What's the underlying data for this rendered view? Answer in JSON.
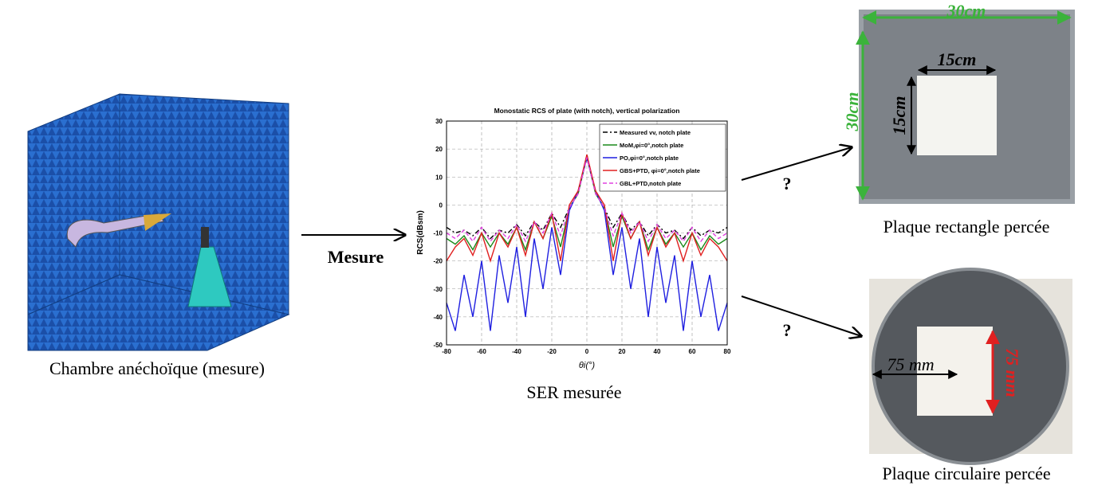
{
  "chamber": {
    "caption": "Chambre anéchoïque (mesure)"
  },
  "arrow_labels": [
    "Mesure",
    "?",
    "?"
  ],
  "chart": {
    "type": "line",
    "title": "Monostatic RCS of plate (with notch), vertical polarization",
    "xlabel": "θi(°)",
    "ylabel": "RCS(dBsm)",
    "xlim": [
      -80,
      80
    ],
    "ylim": [
      -50,
      30
    ],
    "xticks": [
      -80,
      -60,
      -40,
      -20,
      0,
      20,
      40,
      60,
      80
    ],
    "yticks": [
      -50,
      -40,
      -30,
      -20,
      -10,
      0,
      10,
      20,
      30
    ],
    "grid": true,
    "x": [
      -80,
      -75,
      -70,
      -65,
      -60,
      -55,
      -50,
      -45,
      -40,
      -35,
      -30,
      -25,
      -20,
      -15,
      -10,
      -5,
      0,
      5,
      10,
      15,
      20,
      25,
      30,
      35,
      40,
      45,
      50,
      55,
      60,
      65,
      70,
      75,
      80
    ],
    "series": [
      {
        "name": "Measured vv, notch plate",
        "color": "#000000",
        "dash": "6 3 2 3",
        "values": [
          -8,
          -10,
          -9,
          -11,
          -8,
          -12,
          -9,
          -10,
          -7,
          -11,
          -6,
          -9,
          -3,
          -8,
          -1,
          4,
          18,
          4,
          -1,
          -8,
          -3,
          -9,
          -6,
          -11,
          -7,
          -10,
          -9,
          -12,
          -8,
          -11,
          -9,
          -10,
          -8
        ]
      },
      {
        "name": "MoM,φi=0°,notch plate",
        "color": "#1a8a1a",
        "dash": "",
        "values": [
          -12,
          -14,
          -11,
          -16,
          -10,
          -15,
          -10,
          -14,
          -8,
          -16,
          -6,
          -12,
          -4,
          -15,
          -1,
          4,
          17,
          4,
          -1,
          -15,
          -4,
          -12,
          -6,
          -16,
          -8,
          -14,
          -10,
          -15,
          -10,
          -16,
          -11,
          -14,
          -12
        ]
      },
      {
        "name": "PO,φi=0°,notch plate",
        "color": "#1f1fe0",
        "dash": "",
        "values": [
          -35,
          -45,
          -25,
          -40,
          -20,
          -45,
          -18,
          -35,
          -15,
          -40,
          -12,
          -30,
          -8,
          -25,
          -2,
          5,
          17,
          5,
          -2,
          -25,
          -8,
          -30,
          -12,
          -40,
          -15,
          -35,
          -18,
          -45,
          -20,
          -40,
          -25,
          -45,
          -35
        ]
      },
      {
        "name": "GBS+PTD, φi=0°,notch plate",
        "color": "#e02020",
        "dash": "",
        "values": [
          -20,
          -15,
          -12,
          -18,
          -10,
          -20,
          -10,
          -15,
          -8,
          -18,
          -6,
          -12,
          -3,
          -20,
          0,
          5,
          18,
          5,
          0,
          -20,
          -3,
          -12,
          -6,
          -18,
          -8,
          -15,
          -10,
          -20,
          -10,
          -18,
          -12,
          -15,
          -20
        ]
      },
      {
        "name": "GBL+PTD,notch plate",
        "color": "#e040e0",
        "dash": "5 3",
        "values": [
          -10,
          -12,
          -9,
          -13,
          -8,
          -13,
          -9,
          -12,
          -7,
          -13,
          -6,
          -10,
          -3,
          -11,
          -1,
          4,
          17,
          4,
          -1,
          -11,
          -3,
          -10,
          -6,
          -13,
          -7,
          -12,
          -9,
          -13,
          -8,
          -13,
          -9,
          -12,
          -10
        ]
      }
    ],
    "caption": "SER mesurée"
  },
  "plates": [
    {
      "caption": "Plaque rectangle percée",
      "labels": [
        "30cm",
        "30cm",
        "15cm",
        "15cm"
      ]
    },
    {
      "caption": "Plaque circulaire percée",
      "labels": [
        "75 mm",
        "75 mm"
      ]
    }
  ]
}
